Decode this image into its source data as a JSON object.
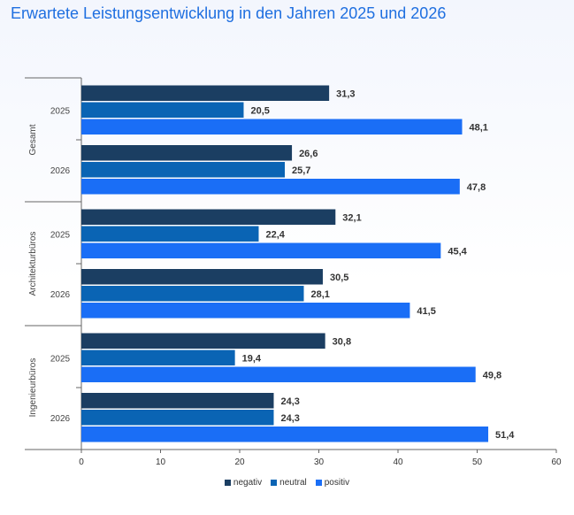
{
  "title": "Erwartete Leistungsentwicklung in den Jahren 2025 und 2026",
  "colors": {
    "negativ": "#1b3e62",
    "neutral": "#0a64b4",
    "positiv": "#1a6ef6"
  },
  "chart_data": {
    "type": "bar",
    "orientation": "horizontal",
    "title": "Erwartete Leistungsentwicklung in den Jahren 2025 und 2026",
    "groups": [
      {
        "label": "Gesamt",
        "rows": [
          {
            "year": "2025",
            "values": [
              31.3,
              20.5,
              48.1
            ],
            "labels": [
              "31,3",
              "20,5",
              "48,1"
            ]
          },
          {
            "year": "2026",
            "values": [
              26.6,
              25.7,
              47.8
            ],
            "labels": [
              "26,6",
              "25,7",
              "47,8"
            ]
          }
        ]
      },
      {
        "label": "Architekturbüros",
        "rows": [
          {
            "year": "2025",
            "values": [
              32.1,
              22.4,
              45.4
            ],
            "labels": [
              "32,1",
              "22,4",
              "45,4"
            ]
          },
          {
            "year": "2026",
            "values": [
              30.5,
              28.1,
              41.5
            ],
            "labels": [
              "30,5",
              "28,1",
              "41,5"
            ]
          }
        ]
      },
      {
        "label": "Ingenieurbüros",
        "rows": [
          {
            "year": "2025",
            "values": [
              30.8,
              19.4,
              49.8
            ],
            "labels": [
              "30,8",
              "19,4",
              "49,8"
            ]
          },
          {
            "year": "2026",
            "values": [
              24.3,
              24.3,
              51.4
            ],
            "labels": [
              "24,3",
              "24,3",
              "51,4"
            ]
          }
        ]
      }
    ],
    "series": [
      {
        "name": "negativ"
      },
      {
        "name": "neutral"
      },
      {
        "name": "positiv"
      }
    ],
    "xlim": [
      0,
      60
    ],
    "xticks": [
      "0",
      "10",
      "20",
      "30",
      "40",
      "50",
      "60"
    ],
    "grid": false,
    "legend_position": "bottom-center"
  },
  "legend": {
    "negativ": "negativ",
    "neutral": "neutral",
    "positiv": "positiv"
  }
}
